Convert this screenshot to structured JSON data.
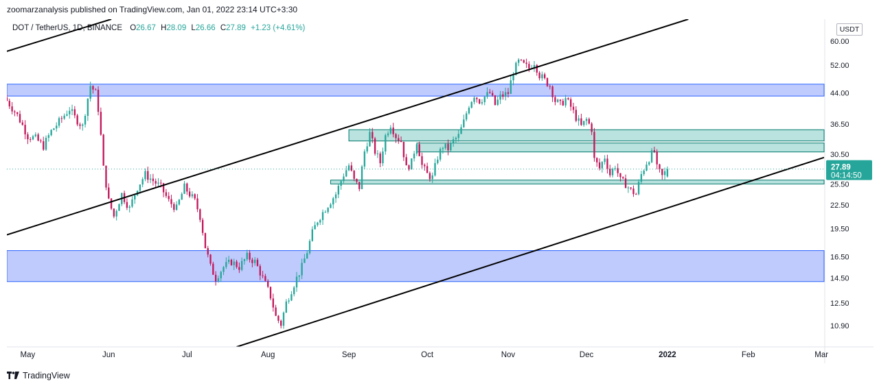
{
  "header": {
    "text": "zoomarzanalysis published on TradingView.com, Jan 01, 2022 23:14 UTC+3:30"
  },
  "legend": {
    "symbol": "DOT / TetherUS, 1D, BINANCE",
    "o_label": "O",
    "o": "26.67",
    "h_label": "H",
    "h": "28.09",
    "l_label": "L",
    "l": "26.66",
    "c_label": "C",
    "c": "27.89",
    "change": "+1.23 (+4.61%)"
  },
  "currency": "USDT",
  "footer": {
    "brand": "TradingView"
  },
  "price_badge": {
    "price": "27.89",
    "countdown": "04:14:50"
  },
  "colors": {
    "up": "#26a69a",
    "down": "#c2185b",
    "zone_blue": "#bcc8fc",
    "zone_blue_border": "#2962ff",
    "zone_green": "#b2dfdb",
    "zone_green_border": "#00796b",
    "badge": "#26a69a",
    "trendline": "#000000"
  },
  "chart_data": {
    "type": "candlestick",
    "title": "DOT / TetherUS, 1D, BINANCE",
    "scale": "log",
    "ylim": [
      9.6,
      68.5
    ],
    "y_ticks": [
      "60.00",
      "52.00",
      "44.00",
      "36.50",
      "30.50",
      "25.50",
      "22.50",
      "19.50",
      "16.50",
      "14.50",
      "12.50",
      "10.90"
    ],
    "x_ticks": [
      "May",
      "Jun",
      "Jul",
      "Aug",
      "Sep",
      "Oct",
      "Nov",
      "Dec",
      "2022",
      "Feb",
      "Mar"
    ],
    "last_price": 27.89,
    "zones": [
      {
        "name": "resistance-zone-upper",
        "color": "blue",
        "from": "2021-04-23",
        "to": "2022-03-02",
        "low": 43.2,
        "high": 46.4
      },
      {
        "name": "support-zone-lower",
        "color": "blue",
        "from": "2021-04-23",
        "to": "2022-03-02",
        "low": 14.2,
        "high": 17.1
      },
      {
        "name": "zone-36",
        "color": "green",
        "from": "2021-09-01",
        "to": "2022-03-02",
        "low": 33.0,
        "high": 35.3
      },
      {
        "name": "zone-31",
        "color": "green",
        "from": "2021-09-27",
        "to": "2022-03-02",
        "low": 30.9,
        "high": 32.6
      },
      {
        "name": "zone-26",
        "color": "green",
        "from": "2021-08-25",
        "to": "2022-03-02",
        "low": 25.5,
        "high": 26.1
      }
    ],
    "trendlines": [
      {
        "name": "channel-upper-left",
        "from": {
          "date": "2021-04-23",
          "price": 56.5
        },
        "to": {
          "date": "2021-06-02",
          "price": 68.5
        }
      },
      {
        "name": "channel-middle",
        "from": {
          "date": "2021-04-23",
          "price": 18.8
        },
        "to": {
          "date": "2022-01-09",
          "price": 68.5
        }
      },
      {
        "name": "channel-lower",
        "from": {
          "date": "2021-07-20",
          "price": 9.6
        },
        "to": {
          "date": "2022-03-02",
          "price": 29.9
        }
      }
    ],
    "closes": [
      {
        "date": "2021-04-23",
        "close": 42.0
      },
      {
        "date": "2021-04-27",
        "close": 38.5
      },
      {
        "date": "2021-05-01",
        "close": 34.0
      },
      {
        "date": "2021-05-04",
        "close": 33.5
      },
      {
        "date": "2021-05-07",
        "close": 32.0
      },
      {
        "date": "2021-05-10",
        "close": 35.0
      },
      {
        "date": "2021-05-13",
        "close": 37.0
      },
      {
        "date": "2021-05-17",
        "close": 40.0
      },
      {
        "date": "2021-05-19",
        "close": 38.0
      },
      {
        "date": "2021-05-22",
        "close": 36.0
      },
      {
        "date": "2021-05-25",
        "close": 46.0
      },
      {
        "date": "2021-05-27",
        "close": 44.0
      },
      {
        "date": "2021-05-28",
        "close": 40.0
      },
      {
        "date": "2021-05-30",
        "close": 28.0
      },
      {
        "date": "2021-06-01",
        "close": 23.0
      },
      {
        "date": "2021-06-03",
        "close": 21.0
      },
      {
        "date": "2021-06-06",
        "close": 24.0
      },
      {
        "date": "2021-06-09",
        "close": 22.0
      },
      {
        "date": "2021-06-12",
        "close": 25.0
      },
      {
        "date": "2021-06-15",
        "close": 27.0
      },
      {
        "date": "2021-06-18",
        "close": 26.0
      },
      {
        "date": "2021-06-21",
        "close": 25.0
      },
      {
        "date": "2021-06-24",
        "close": 23.0
      },
      {
        "date": "2021-06-27",
        "close": 22.0
      },
      {
        "date": "2021-06-30",
        "close": 25.0
      },
      {
        "date": "2021-07-02",
        "close": 24.0
      },
      {
        "date": "2021-07-04",
        "close": 23.0
      },
      {
        "date": "2021-07-06",
        "close": 21.0
      },
      {
        "date": "2021-07-08",
        "close": 17.5
      },
      {
        "date": "2021-07-10",
        "close": 15.5
      },
      {
        "date": "2021-07-12",
        "close": 14.5
      },
      {
        "date": "2021-07-15",
        "close": 15.5
      },
      {
        "date": "2021-07-18",
        "close": 16.0
      },
      {
        "date": "2021-07-21",
        "close": 15.5
      },
      {
        "date": "2021-07-24",
        "close": 16.5
      },
      {
        "date": "2021-07-27",
        "close": 16.0
      },
      {
        "date": "2021-07-30",
        "close": 14.5
      },
      {
        "date": "2021-08-02",
        "close": 13.0
      },
      {
        "date": "2021-08-04",
        "close": 11.5
      },
      {
        "date": "2021-08-06",
        "close": 11.0
      },
      {
        "date": "2021-08-08",
        "close": 12.5
      },
      {
        "date": "2021-08-10",
        "close": 13.5
      },
      {
        "date": "2021-08-12",
        "close": 14.5
      },
      {
        "date": "2021-08-14",
        "close": 15.5
      },
      {
        "date": "2021-08-16",
        "close": 17.0
      },
      {
        "date": "2021-08-18",
        "close": 19.0
      },
      {
        "date": "2021-08-20",
        "close": 20.5
      },
      {
        "date": "2021-08-22",
        "close": 21.5
      },
      {
        "date": "2021-08-24",
        "close": 22.5
      },
      {
        "date": "2021-08-27",
        "close": 24.0
      },
      {
        "date": "2021-08-30",
        "close": 27.0
      },
      {
        "date": "2021-09-01",
        "close": 28.5
      },
      {
        "date": "2021-09-03",
        "close": 26.0
      },
      {
        "date": "2021-09-05",
        "close": 25.0
      },
      {
        "date": "2021-09-07",
        "close": 31.0
      },
      {
        "date": "2021-09-09",
        "close": 34.5
      },
      {
        "date": "2021-09-11",
        "close": 31.0
      },
      {
        "date": "2021-09-13",
        "close": 29.0
      },
      {
        "date": "2021-09-15",
        "close": 34.0
      },
      {
        "date": "2021-09-17",
        "close": 36.5
      },
      {
        "date": "2021-09-19",
        "close": 34.0
      },
      {
        "date": "2021-09-21",
        "close": 33.0
      },
      {
        "date": "2021-09-23",
        "close": 28.0
      },
      {
        "date": "2021-09-25",
        "close": 29.0
      },
      {
        "date": "2021-09-27",
        "close": 33.0
      },
      {
        "date": "2021-09-29",
        "close": 28.5
      },
      {
        "date": "2021-10-01",
        "close": 27.0
      },
      {
        "date": "2021-10-03",
        "close": 26.5
      },
      {
        "date": "2021-10-05",
        "close": 30.0
      },
      {
        "date": "2021-10-07",
        "close": 32.0
      },
      {
        "date": "2021-10-09",
        "close": 31.5
      },
      {
        "date": "2021-10-11",
        "close": 33.0
      },
      {
        "date": "2021-10-13",
        "close": 34.0
      },
      {
        "date": "2021-10-15",
        "close": 37.0
      },
      {
        "date": "2021-10-17",
        "close": 41.0
      },
      {
        "date": "2021-10-19",
        "close": 43.5
      },
      {
        "date": "2021-10-21",
        "close": 42.0
      },
      {
        "date": "2021-10-23",
        "close": 43.0
      },
      {
        "date": "2021-10-25",
        "close": 44.0
      },
      {
        "date": "2021-10-27",
        "close": 41.0
      },
      {
        "date": "2021-10-29",
        "close": 43.0
      },
      {
        "date": "2021-11-01",
        "close": 44.0
      },
      {
        "date": "2021-11-03",
        "close": 50.0
      },
      {
        "date": "2021-11-05",
        "close": 53.0
      },
      {
        "date": "2021-11-07",
        "close": 52.0
      },
      {
        "date": "2021-11-09",
        "close": 51.0
      },
      {
        "date": "2021-11-11",
        "close": 53.0
      },
      {
        "date": "2021-11-13",
        "close": 49.0
      },
      {
        "date": "2021-11-15",
        "close": 47.5
      },
      {
        "date": "2021-11-17",
        "close": 46.0
      },
      {
        "date": "2021-11-19",
        "close": 42.0
      },
      {
        "date": "2021-11-21",
        "close": 41.0
      },
      {
        "date": "2021-11-23",
        "close": 42.5
      },
      {
        "date": "2021-11-25",
        "close": 40.5
      },
      {
        "date": "2021-11-27",
        "close": 38.0
      },
      {
        "date": "2021-11-29",
        "close": 36.0
      },
      {
        "date": "2021-12-01",
        "close": 37.5
      },
      {
        "date": "2021-12-03",
        "close": 35.5
      },
      {
        "date": "2021-12-04",
        "close": 29.5
      },
      {
        "date": "2021-12-06",
        "close": 28.0
      },
      {
        "date": "2021-12-08",
        "close": 30.0
      },
      {
        "date": "2021-12-10",
        "close": 27.0
      },
      {
        "date": "2021-12-12",
        "close": 28.5
      },
      {
        "date": "2021-12-14",
        "close": 26.0
      },
      {
        "date": "2021-12-16",
        "close": 25.5
      },
      {
        "date": "2021-12-18",
        "close": 24.5
      },
      {
        "date": "2021-12-20",
        "close": 24.0
      },
      {
        "date": "2021-12-22",
        "close": 27.0
      },
      {
        "date": "2021-12-24",
        "close": 29.0
      },
      {
        "date": "2021-12-26",
        "close": 30.5
      },
      {
        "date": "2021-12-27",
        "close": 31.0
      },
      {
        "date": "2021-12-28",
        "close": 28.0
      },
      {
        "date": "2021-12-30",
        "close": 26.67
      },
      {
        "date": "2022-01-01",
        "close": 27.89
      }
    ]
  }
}
